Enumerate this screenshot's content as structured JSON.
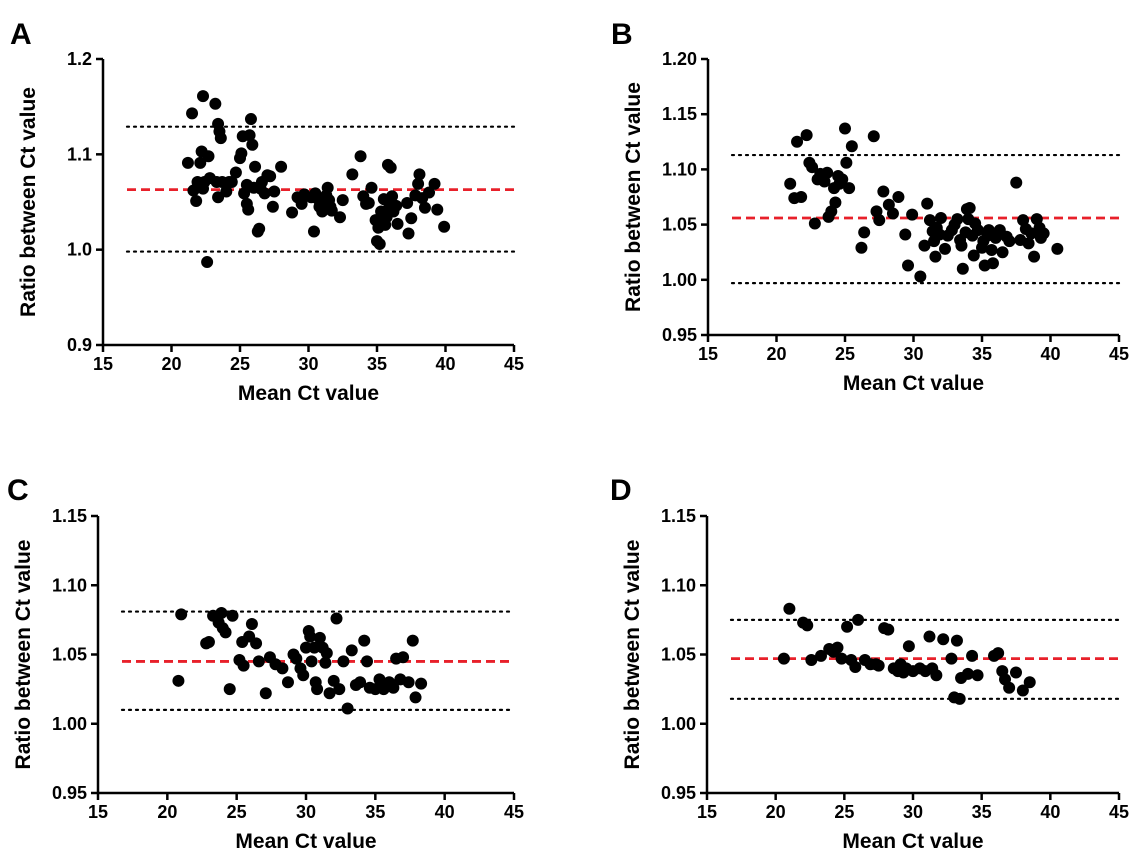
{
  "chart_data": [
    {
      "type": "scatter",
      "panel_label": "A",
      "xlabel": "Mean Ct value",
      "ylabel": "Ratio between Ct value",
      "xlim": [
        15,
        45
      ],
      "ylim": [
        0.9,
        1.2
      ],
      "xticks": [
        "15",
        "20",
        "25",
        "30",
        "35",
        "40",
        "45"
      ],
      "yticks": [
        "0.9",
        "1.0",
        "1.1",
        "1.2"
      ],
      "mean_line": 1.063,
      "limits": [
        1.129,
        0.998
      ],
      "colors": {
        "points": "#000000",
        "mean_line": "#e8202a",
        "limit_lines": "#000000"
      },
      "points": [
        [
          21.2,
          1.091
        ],
        [
          21.5,
          1.143
        ],
        [
          21.6,
          1.062
        ],
        [
          21.8,
          1.051
        ],
        [
          21.9,
          1.071
        ],
        [
          22.1,
          1.091
        ],
        [
          22.2,
          1.103
        ],
        [
          22.3,
          1.161
        ],
        [
          22.3,
          1.064
        ],
        [
          22.4,
          1.071
        ],
        [
          22.6,
          0.987
        ],
        [
          22.7,
          1.098
        ],
        [
          22.8,
          1.075
        ],
        [
          23.2,
          1.153
        ],
        [
          23.3,
          1.071
        ],
        [
          23.4,
          1.132
        ],
        [
          23.4,
          1.055
        ],
        [
          23.5,
          1.124
        ],
        [
          23.6,
          1.117
        ],
        [
          23.7,
          1.071
        ],
        [
          24.0,
          1.061
        ],
        [
          24.2,
          1.071
        ],
        [
          24.4,
          1.071
        ],
        [
          24.7,
          1.081
        ],
        [
          25.0,
          1.096
        ],
        [
          25.1,
          1.101
        ],
        [
          25.2,
          1.119
        ],
        [
          25.3,
          1.059
        ],
        [
          25.5,
          1.068
        ],
        [
          25.5,
          1.048
        ],
        [
          25.6,
          1.042
        ],
        [
          25.7,
          1.12
        ],
        [
          25.8,
          1.137
        ],
        [
          25.9,
          1.11
        ],
        [
          26.0,
          1.065
        ],
        [
          26.1,
          1.087
        ],
        [
          26.3,
          1.019
        ],
        [
          26.4,
          1.022
        ],
        [
          26.5,
          1.064
        ],
        [
          26.6,
          1.071
        ],
        [
          26.8,
          1.059
        ],
        [
          27.0,
          1.078
        ],
        [
          27.2,
          1.077
        ],
        [
          27.4,
          1.045
        ],
        [
          27.5,
          1.061
        ],
        [
          28.0,
          1.087
        ],
        [
          28.8,
          1.039
        ],
        [
          29.2,
          1.055
        ],
        [
          29.5,
          1.048
        ],
        [
          29.7,
          1.058
        ],
        [
          30.2,
          1.055
        ],
        [
          30.4,
          1.019
        ],
        [
          30.5,
          1.059
        ],
        [
          30.7,
          1.053
        ],
        [
          30.8,
          1.045
        ],
        [
          31.0,
          1.04
        ],
        [
          31.2,
          1.048
        ],
        [
          31.3,
          1.057
        ],
        [
          31.4,
          1.065
        ],
        [
          31.5,
          1.052
        ],
        [
          31.6,
          1.045
        ],
        [
          31.7,
          1.041
        ],
        [
          32.3,
          1.034
        ],
        [
          32.5,
          1.052
        ],
        [
          33.2,
          1.079
        ],
        [
          33.8,
          1.098
        ],
        [
          34.0,
          1.056
        ],
        [
          34.2,
          1.048
        ],
        [
          34.4,
          1.049
        ],
        [
          34.6,
          1.065
        ],
        [
          34.9,
          1.031
        ],
        [
          35.0,
          1.009
        ],
        [
          35.1,
          1.023
        ],
        [
          35.2,
          1.006
        ],
        [
          35.3,
          1.04
        ],
        [
          35.5,
          1.053
        ],
        [
          35.6,
          1.026
        ],
        [
          35.7,
          1.034
        ],
        [
          35.8,
          1.089
        ],
        [
          35.9,
          1.045
        ],
        [
          36.0,
          1.086
        ],
        [
          36.1,
          1.056
        ],
        [
          36.2,
          1.04
        ],
        [
          36.4,
          1.046
        ],
        [
          36.5,
          1.027
        ],
        [
          37.2,
          1.049
        ],
        [
          37.3,
          1.017
        ],
        [
          37.5,
          1.033
        ],
        [
          37.8,
          1.057
        ],
        [
          38.0,
          1.069
        ],
        [
          38.1,
          1.079
        ],
        [
          38.3,
          1.054
        ],
        [
          38.5,
          1.044
        ],
        [
          38.8,
          1.06
        ],
        [
          39.2,
          1.069
        ],
        [
          39.4,
          1.042
        ],
        [
          39.9,
          1.024
        ]
      ]
    },
    {
      "type": "scatter",
      "panel_label": "B",
      "xlabel": "Mean Ct value",
      "ylabel": "Ratio between Ct value",
      "xlim": [
        15,
        45
      ],
      "ylim": [
        0.95,
        1.2
      ],
      "xticks": [
        "15",
        "20",
        "25",
        "30",
        "35",
        "40",
        "45"
      ],
      "yticks": [
        "0.95",
        "1.00",
        "1.05",
        "1.10",
        "1.15",
        "1.20"
      ],
      "mean_line": 1.056,
      "limits": [
        1.113,
        0.997
      ],
      "colors": {
        "points": "#000000",
        "mean_line": "#e8202a",
        "limit_lines": "#000000"
      },
      "points": [
        [
          21.0,
          1.087
        ],
        [
          21.3,
          1.074
        ],
        [
          21.5,
          1.125
        ],
        [
          21.8,
          1.075
        ],
        [
          22.2,
          1.131
        ],
        [
          22.4,
          1.106
        ],
        [
          22.6,
          1.102
        ],
        [
          22.8,
          1.051
        ],
        [
          23.0,
          1.091
        ],
        [
          23.2,
          1.096
        ],
        [
          23.5,
          1.089
        ],
        [
          23.7,
          1.097
        ],
        [
          23.8,
          1.057
        ],
        [
          24.0,
          1.062
        ],
        [
          24.2,
          1.083
        ],
        [
          24.3,
          1.07
        ],
        [
          24.5,
          1.094
        ],
        [
          24.6,
          1.087
        ],
        [
          24.8,
          1.091
        ],
        [
          25.0,
          1.137
        ],
        [
          25.1,
          1.106
        ],
        [
          25.3,
          1.083
        ],
        [
          25.5,
          1.121
        ],
        [
          26.2,
          1.029
        ],
        [
          26.4,
          1.043
        ],
        [
          27.1,
          1.13
        ],
        [
          27.3,
          1.062
        ],
        [
          27.5,
          1.054
        ],
        [
          27.8,
          1.08
        ],
        [
          28.2,
          1.068
        ],
        [
          28.5,
          1.06
        ],
        [
          28.9,
          1.075
        ],
        [
          29.4,
          1.041
        ],
        [
          29.6,
          1.013
        ],
        [
          29.9,
          1.059
        ],
        [
          30.5,
          1.003
        ],
        [
          30.8,
          1.031
        ],
        [
          31.0,
          1.069
        ],
        [
          31.2,
          1.054
        ],
        [
          31.4,
          1.044
        ],
        [
          31.5,
          1.035
        ],
        [
          31.6,
          1.021
        ],
        [
          31.7,
          1.047
        ],
        [
          31.9,
          1.041
        ],
        [
          32.0,
          1.056
        ],
        [
          32.3,
          1.028
        ],
        [
          32.5,
          1.04
        ],
        [
          32.8,
          1.045
        ],
        [
          33.0,
          1.05
        ],
        [
          33.2,
          1.055
        ],
        [
          33.4,
          1.036
        ],
        [
          33.5,
          1.031
        ],
        [
          33.6,
          1.01
        ],
        [
          33.8,
          1.043
        ],
        [
          33.9,
          1.064
        ],
        [
          34.0,
          1.055
        ],
        [
          34.1,
          1.065
        ],
        [
          34.3,
          1.04
        ],
        [
          34.4,
          1.022
        ],
        [
          34.5,
          1.051
        ],
        [
          34.7,
          1.045
        ],
        [
          35.0,
          1.029
        ],
        [
          35.1,
          1.035
        ],
        [
          35.2,
          1.013
        ],
        [
          35.4,
          1.04
        ],
        [
          35.5,
          1.045
        ],
        [
          35.7,
          1.027
        ],
        [
          35.8,
          1.015
        ],
        [
          36.0,
          1.038
        ],
        [
          36.3,
          1.045
        ],
        [
          36.5,
          1.025
        ],
        [
          36.8,
          1.039
        ],
        [
          37.0,
          1.035
        ],
        [
          37.5,
          1.088
        ],
        [
          37.8,
          1.036
        ],
        [
          38.0,
          1.054
        ],
        [
          38.2,
          1.046
        ],
        [
          38.4,
          1.033
        ],
        [
          38.6,
          1.042
        ],
        [
          38.8,
          1.021
        ],
        [
          39.0,
          1.055
        ],
        [
          39.2,
          1.047
        ],
        [
          39.3,
          1.038
        ],
        [
          39.5,
          1.042
        ],
        [
          40.5,
          1.028
        ]
      ]
    },
    {
      "type": "scatter",
      "panel_label": "C",
      "xlabel": "Mean Ct value",
      "ylabel": "Ratio between Ct value",
      "xlim": [
        15,
        45
      ],
      "ylim": [
        0.95,
        1.15
      ],
      "xticks": [
        "15",
        "20",
        "25",
        "30",
        "35",
        "40",
        "45"
      ],
      "yticks": [
        "0.95",
        "1.00",
        "1.05",
        "1.10",
        "1.15"
      ],
      "mean_line": 1.045,
      "limits": [
        1.081,
        1.01
      ],
      "colors": {
        "points": "#000000",
        "mean_line": "#e8202a",
        "limit_lines": "#000000"
      },
      "points": [
        [
          20.8,
          1.031
        ],
        [
          21.0,
          1.079
        ],
        [
          22.8,
          1.058
        ],
        [
          23.0,
          1.059
        ],
        [
          23.3,
          1.078
        ],
        [
          23.7,
          1.073
        ],
        [
          23.9,
          1.08
        ],
        [
          24.0,
          1.069
        ],
        [
          24.2,
          1.066
        ],
        [
          24.5,
          1.025
        ],
        [
          24.7,
          1.078
        ],
        [
          25.2,
          1.046
        ],
        [
          25.4,
          1.059
        ],
        [
          25.5,
          1.042
        ],
        [
          25.9,
          1.063
        ],
        [
          26.1,
          1.072
        ],
        [
          26.4,
          1.058
        ],
        [
          26.6,
          1.045
        ],
        [
          27.1,
          1.022
        ],
        [
          27.4,
          1.048
        ],
        [
          27.8,
          1.043
        ],
        [
          28.3,
          1.04
        ],
        [
          28.7,
          1.03
        ],
        [
          29.1,
          1.05
        ],
        [
          29.3,
          1.047
        ],
        [
          29.6,
          1.04
        ],
        [
          29.8,
          1.035
        ],
        [
          30.0,
          1.055
        ],
        [
          30.2,
          1.067
        ],
        [
          30.3,
          1.063
        ],
        [
          30.4,
          1.045
        ],
        [
          30.6,
          1.055
        ],
        [
          30.7,
          1.03
        ],
        [
          30.8,
          1.025
        ],
        [
          31.0,
          1.062
        ],
        [
          31.2,
          1.055
        ],
        [
          31.4,
          1.044
        ],
        [
          31.5,
          1.051
        ],
        [
          31.7,
          1.022
        ],
        [
          32.0,
          1.031
        ],
        [
          32.2,
          1.076
        ],
        [
          32.4,
          1.025
        ],
        [
          32.7,
          1.045
        ],
        [
          33.0,
          1.011
        ],
        [
          33.3,
          1.053
        ],
        [
          33.6,
          1.028
        ],
        [
          33.9,
          1.03
        ],
        [
          34.2,
          1.06
        ],
        [
          34.4,
          1.045
        ],
        [
          34.6,
          1.026
        ],
        [
          35.0,
          1.025
        ],
        [
          35.3,
          1.032
        ],
        [
          35.6,
          1.025
        ],
        [
          36.0,
          1.03
        ],
        [
          36.3,
          1.026
        ],
        [
          36.5,
          1.047
        ],
        [
          36.8,
          1.032
        ],
        [
          37.0,
          1.048
        ],
        [
          37.4,
          1.03
        ],
        [
          37.7,
          1.06
        ],
        [
          37.9,
          1.019
        ],
        [
          38.3,
          1.029
        ]
      ]
    },
    {
      "type": "scatter",
      "panel_label": "D",
      "xlabel": "Mean Ct value",
      "ylabel": "Ratio between Ct value",
      "xlim": [
        15,
        45
      ],
      "ylim": [
        0.95,
        1.15
      ],
      "xticks": [
        "15",
        "20",
        "25",
        "30",
        "35",
        "40",
        "45"
      ],
      "yticks": [
        "0.95",
        "1.00",
        "1.05",
        "1.10",
        "1.15"
      ],
      "mean_line": 1.047,
      "limits": [
        1.075,
        1.018
      ],
      "colors": {
        "points": "#000000",
        "mean_line": "#e8202a",
        "limit_lines": "#000000"
      },
      "points": [
        [
          20.6,
          1.047
        ],
        [
          21.0,
          1.083
        ],
        [
          22.0,
          1.073
        ],
        [
          22.3,
          1.071
        ],
        [
          22.6,
          1.046
        ],
        [
          23.3,
          1.049
        ],
        [
          23.9,
          1.054
        ],
        [
          24.2,
          1.052
        ],
        [
          24.5,
          1.055
        ],
        [
          24.8,
          1.047
        ],
        [
          25.2,
          1.07
        ],
        [
          25.5,
          1.046
        ],
        [
          25.8,
          1.041
        ],
        [
          26.0,
          1.075
        ],
        [
          26.5,
          1.046
        ],
        [
          26.9,
          1.043
        ],
        [
          27.3,
          1.043
        ],
        [
          27.5,
          1.042
        ],
        [
          27.9,
          1.069
        ],
        [
          28.2,
          1.068
        ],
        [
          28.6,
          1.04
        ],
        [
          28.9,
          1.038
        ],
        [
          29.1,
          1.043
        ],
        [
          29.3,
          1.037
        ],
        [
          29.5,
          1.04
        ],
        [
          29.7,
          1.056
        ],
        [
          30.0,
          1.038
        ],
        [
          30.5,
          1.04
        ],
        [
          30.9,
          1.038
        ],
        [
          31.2,
          1.063
        ],
        [
          31.4,
          1.04
        ],
        [
          31.7,
          1.035
        ],
        [
          32.2,
          1.061
        ],
        [
          32.8,
          1.047
        ],
        [
          33.0,
          1.019
        ],
        [
          33.2,
          1.06
        ],
        [
          33.4,
          1.018
        ],
        [
          33.5,
          1.033
        ],
        [
          34.0,
          1.036
        ],
        [
          34.3,
          1.049
        ],
        [
          34.7,
          1.035
        ],
        [
          35.9,
          1.049
        ],
        [
          36.2,
          1.051
        ],
        [
          36.5,
          1.038
        ],
        [
          36.7,
          1.032
        ],
        [
          37.0,
          1.026
        ],
        [
          37.5,
          1.037
        ],
        [
          38.0,
          1.024
        ],
        [
          38.5,
          1.03
        ]
      ]
    }
  ]
}
